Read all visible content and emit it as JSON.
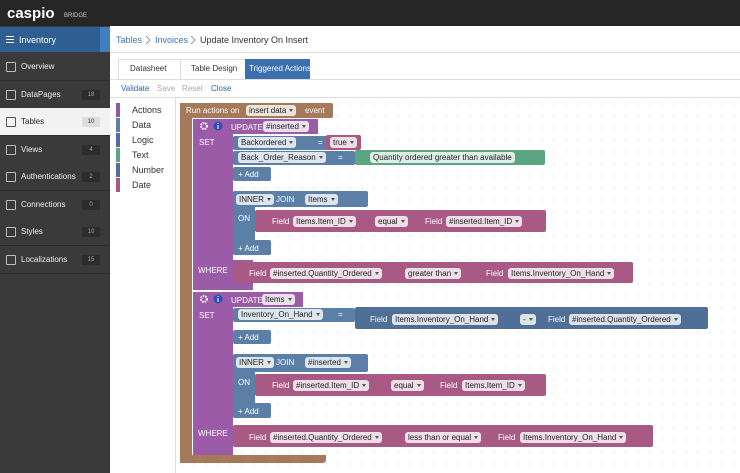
{
  "header": {
    "logo": "caspio",
    "product": "BRIDGE"
  },
  "sidebar": {
    "title": "Inventory",
    "items": [
      {
        "label": "Overview"
      },
      {
        "label": "DataPages",
        "count": 18
      },
      {
        "label": "Tables",
        "count": 10,
        "selected": true
      },
      {
        "label": "Views",
        "count": 4
      },
      {
        "label": "Authentications",
        "count": 2
      },
      {
        "label": "Connections",
        "count": 0
      },
      {
        "label": "Styles",
        "count": 10
      },
      {
        "label": "Localizations",
        "count": 15
      }
    ]
  },
  "breadcrumb": [
    "Tables",
    "Invoices",
    "Update Inventory On Insert"
  ],
  "tabs": [
    "Datasheet",
    "Table Design",
    "Triggered Actions"
  ],
  "toolbar": [
    "Validate",
    "Save",
    "Reset",
    "Close"
  ],
  "palette": [
    "Actions",
    "Data",
    "Logic",
    "Text",
    "Number",
    "Date"
  ],
  "workspace": {
    "event": {
      "prefix": "Run actions on",
      "value": "insert data",
      "suffix": "event"
    },
    "updates": [
      {
        "keyword": "UPDATE",
        "table": "#inserted",
        "set_label": "SET",
        "sets": [
          {
            "field": "Backordered",
            "op": "=",
            "value": "true"
          },
          {
            "field": "Back_Order_Reason",
            "op": "=",
            "value": "Quantity ordered greater than available"
          }
        ],
        "add": "+ Add",
        "join": {
          "type": "INNER",
          "keyword": "JOIN",
          "table": "Items",
          "on_label": "ON",
          "left_tag": "Field",
          "left": "Items.Item_ID",
          "op": "equal",
          "right_tag": "Field",
          "right": "#inserted.Item_ID",
          "add": "+ Add"
        },
        "where_label": "WHERE",
        "where": {
          "left_tag": "Field",
          "left": "#inserted.Quantity_Ordered",
          "op": "greater than",
          "right_tag": "Field",
          "right": "Items.Inventory_On_Hand"
        }
      },
      {
        "keyword": "UPDATE",
        "table": "Items",
        "set_label": "SET",
        "sets": [
          {
            "field": "Inventory_On_Hand",
            "op": "=",
            "expr": {
              "left_tag": "Field",
              "left": "Items.Inventory_On_Hand",
              "op": "-",
              "right_tag": "Field",
              "right": "#inserted.Quantity_Ordered"
            }
          }
        ],
        "add": "+ Add",
        "join": {
          "type": "INNER",
          "keyword": "JOIN",
          "table": "#inserted",
          "on_label": "ON",
          "left_tag": "Field",
          "left": "#inserted.Item_ID",
          "op": "equal",
          "right_tag": "Field",
          "right": "Items.Item_ID",
          "add": "+ Add"
        },
        "where_label": "WHERE",
        "where": {
          "left_tag": "Field",
          "left": "#inserted.Quantity_Ordered",
          "op": "less than or equal",
          "right_tag": "Field",
          "right": "Items.Inventory_On_Hand"
        }
      }
    ]
  }
}
